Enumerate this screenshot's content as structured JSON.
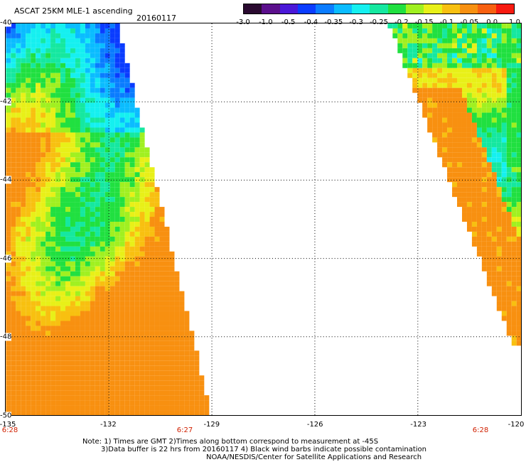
{
  "header": {
    "title": "ASCAT 25KM MLE-1 ascending",
    "date": "20160117"
  },
  "colorbar": {
    "colors": [
      "#2a0a30",
      "#5b0f8c",
      "#4a18d8",
      "#0a3cff",
      "#0a7cff",
      "#0abcff",
      "#15f0f0",
      "#15e8a0",
      "#20e040",
      "#a0f020",
      "#e8f018",
      "#f8c010",
      "#f89010",
      "#f86010",
      "#f81a10"
    ],
    "labels": [
      "-3.0",
      "-1.0",
      "-0.5",
      "-0.4",
      "-0.35",
      "-0.3",
      "-0.25",
      "-0.2",
      "-0.15",
      "-0.1",
      "-0.05",
      "0.0",
      "1.0"
    ]
  },
  "axes": {
    "lat_labels": [
      "-40",
      "-42",
      "-44",
      "-46",
      "-48",
      "-50"
    ],
    "lon_labels": [
      "-135",
      "-132",
      "-129",
      "-126",
      "-123",
      "-120"
    ]
  },
  "time_labels": [
    "6:28",
    "6:27",
    "6:28"
  ],
  "notes": {
    "line1": "Note: 1) Times are GMT 2)Times along bottom correspond to measurement at -45S",
    "line2": "3)Data buffer is 22 hrs from 20160117 4) Black wind barbs indicate possible contamination",
    "line3": "NOAA/NESDIS/Center for Satellite Applications and Research"
  }
}
